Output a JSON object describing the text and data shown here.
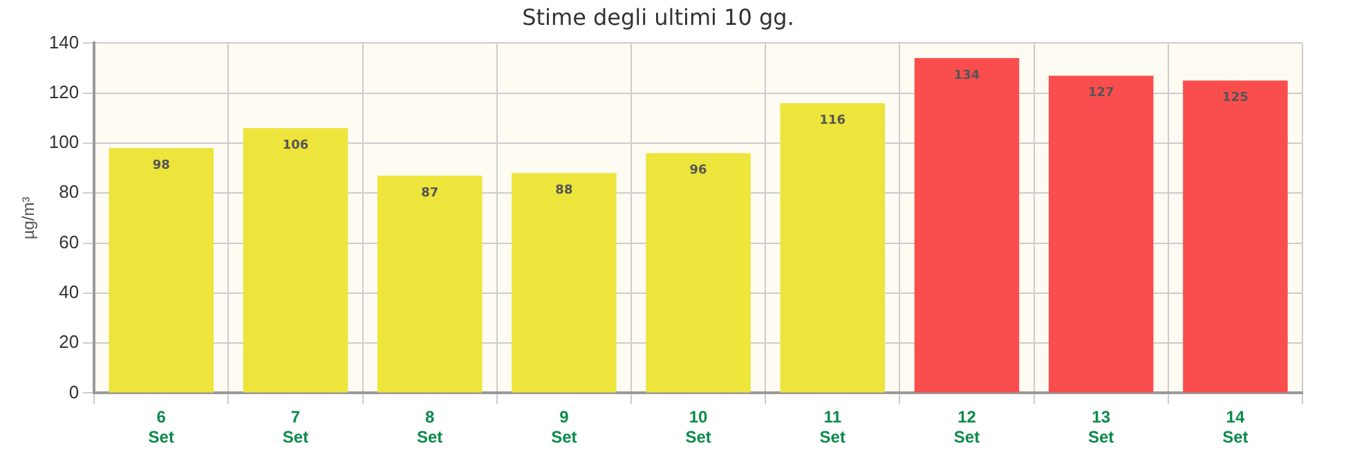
{
  "chart_data": {
    "type": "bar",
    "title": "Stime degli ultimi 10 gg.",
    "ylabel": "µg/m³",
    "categories": [
      "6 Set",
      "7 Set",
      "8 Set",
      "9 Set",
      "10 Set",
      "11 Set",
      "12 Set",
      "13 Set",
      "14 Set"
    ],
    "values": [
      98,
      106,
      87,
      88,
      96,
      116,
      134,
      127,
      125
    ],
    "colors": [
      "#ede43c",
      "#ede43c",
      "#ede43c",
      "#ede43c",
      "#ede43c",
      "#ede43c",
      "#fa4d4d",
      "#fa4d4d",
      "#fa4d4d"
    ],
    "ylim": [
      0,
      140
    ],
    "yticks": [
      0,
      20,
      40,
      60,
      80,
      100,
      120,
      140
    ],
    "grid": true,
    "data_labels": true
  }
}
